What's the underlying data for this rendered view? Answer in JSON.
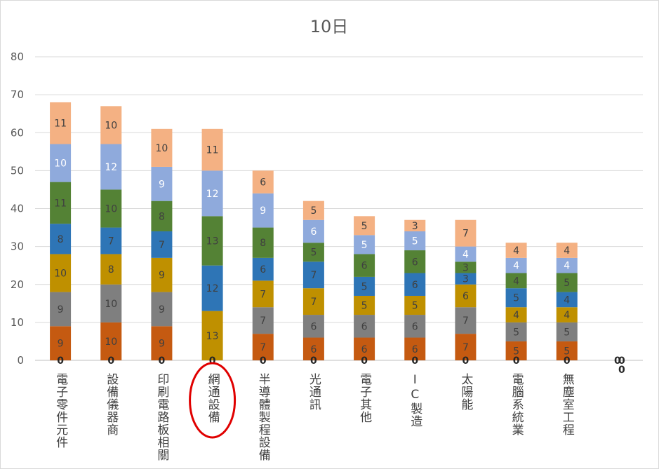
{
  "chart_data": {
    "type": "bar",
    "stacked": true,
    "title": "10日",
    "ylim": [
      0,
      80
    ],
    "yticks": [
      "0",
      "10",
      "20",
      "30",
      "40",
      "50",
      "60",
      "70",
      "80"
    ],
    "grid": true,
    "legend": "none",
    "categories": [
      "電子零件元件",
      "設備儀器商",
      "印刷電路板相關",
      "網通設備",
      "半導體製程設備",
      "光通訊",
      "電子其他",
      "IC製造",
      "太陽能",
      "電腦系統業",
      "無塵室工程",
      ""
    ],
    "highlighted_category": "網通設備",
    "zero_labels": [
      "0",
      "0",
      "0",
      "0",
      "0",
      "0",
      "0",
      "0",
      "0",
      "0",
      "0",
      "0"
    ],
    "last_zero_labels": [
      "0",
      "0"
    ],
    "series": [
      {
        "color": "#c55a11",
        "values": [
          9,
          10,
          9,
          0,
          7,
          6,
          6,
          6,
          7,
          5,
          5,
          0
        ]
      },
      {
        "color": "#7f7f7f",
        "values": [
          9,
          10,
          9,
          0,
          7,
          6,
          6,
          6,
          7,
          5,
          5,
          0
        ]
      },
      {
        "color": "#bf9000",
        "values": [
          10,
          8,
          9,
          13,
          7,
          7,
          5,
          5,
          6,
          4,
          4,
          0
        ]
      },
      {
        "color": "#2e75b6",
        "values": [
          8,
          7,
          7,
          12,
          6,
          7,
          5,
          6,
          3,
          5,
          4,
          0
        ]
      },
      {
        "color": "#548235",
        "values": [
          11,
          10,
          8,
          13,
          8,
          5,
          6,
          6,
          3,
          4,
          5,
          0
        ]
      },
      {
        "color": "#8faadc",
        "values": [
          10,
          12,
          9,
          12,
          9,
          6,
          5,
          5,
          4,
          4,
          4,
          0
        ]
      },
      {
        "color": "#f4b183",
        "values": [
          11,
          10,
          10,
          11,
          6,
          5,
          5,
          3,
          7,
          4,
          4,
          0
        ]
      }
    ],
    "highlight_color": "#e00000"
  }
}
